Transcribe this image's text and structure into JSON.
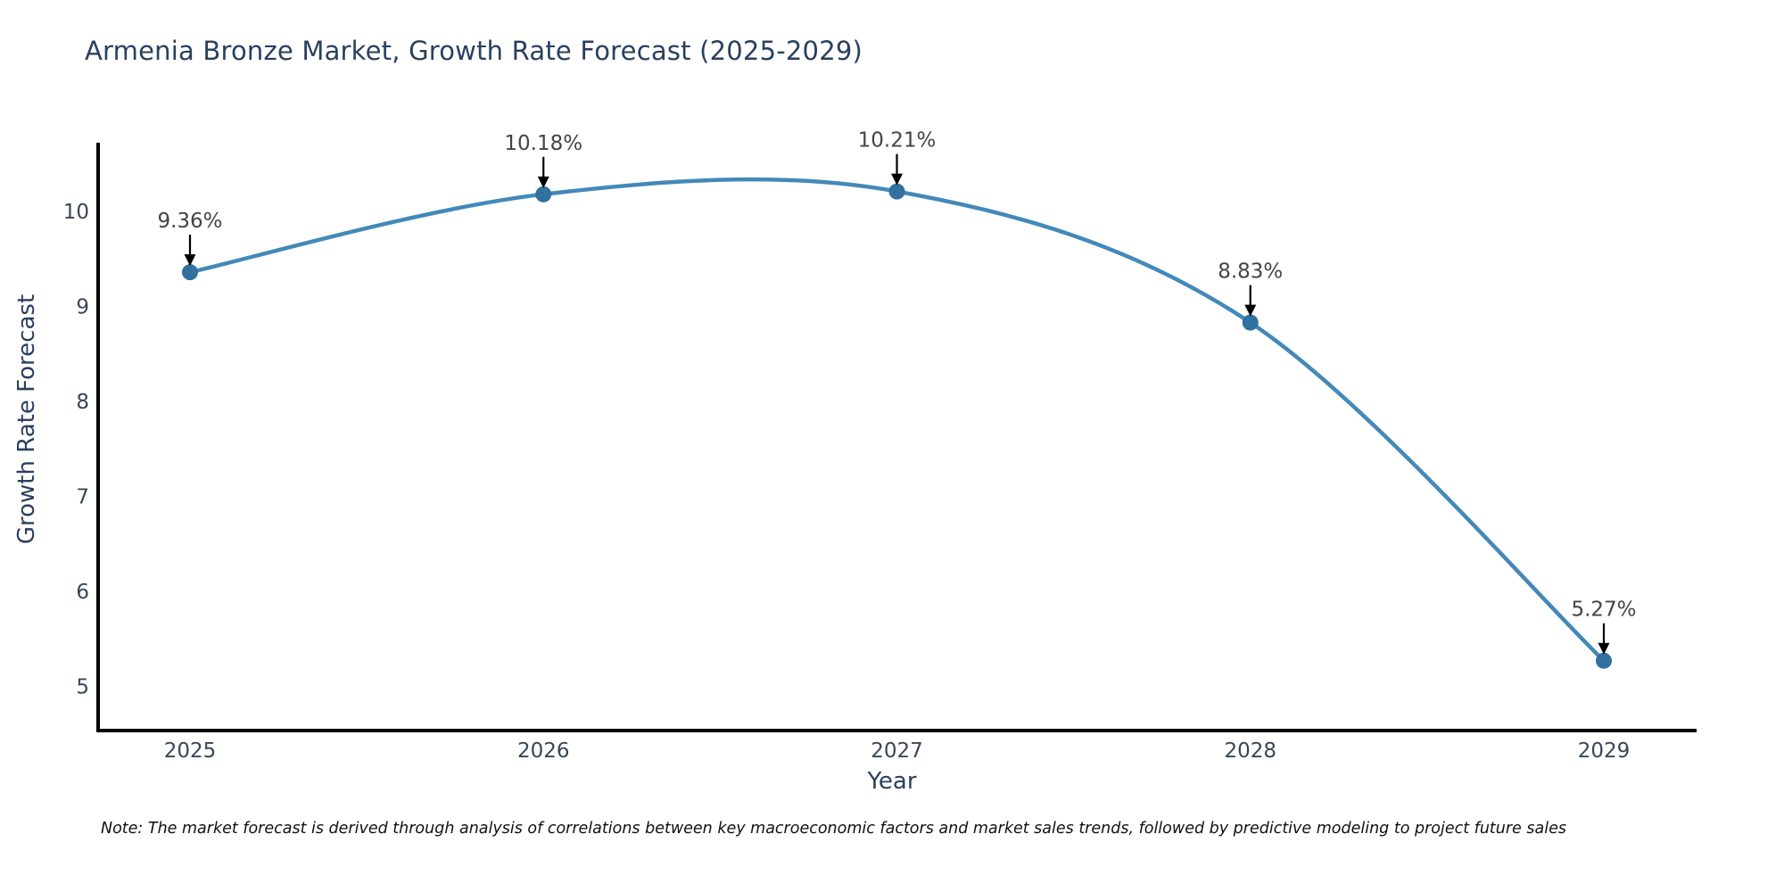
{
  "title": "Armenia Bronze Market, Growth Rate Forecast (2025-2029)",
  "note": "Note: The market forecast is derived through analysis of correlations between key macroeconomic factors and market sales trends, followed by predictive modeling to project future sales",
  "chart_data": {
    "type": "line",
    "title": "Armenia Bronze Market, Growth Rate Forecast (2025-2029)",
    "xlabel": "Year",
    "ylabel": "Growth Rate Forecast",
    "categories": [
      "2025",
      "2026",
      "2027",
      "2028",
      "2029"
    ],
    "values": [
      9.36,
      10.18,
      10.21,
      8.83,
      5.27
    ],
    "point_labels": [
      "9.36%",
      "10.18%",
      "10.21%",
      "8.83%",
      "5.27%"
    ],
    "y_ticks": [
      5,
      6,
      7,
      8,
      9,
      10
    ],
    "ylim": [
      4.55,
      10.72
    ],
    "grid": false,
    "legend_position": "none",
    "line_shape": "spline",
    "colors": {
      "line": "#4389b9",
      "marker": "#31709f",
      "axis": "#000000",
      "title_text": "#2a3f5f",
      "tick_text": "#3a4657",
      "annotation_text": "#444444",
      "annotation_arrow": "#000000",
      "background": "#ffffff"
    }
  }
}
